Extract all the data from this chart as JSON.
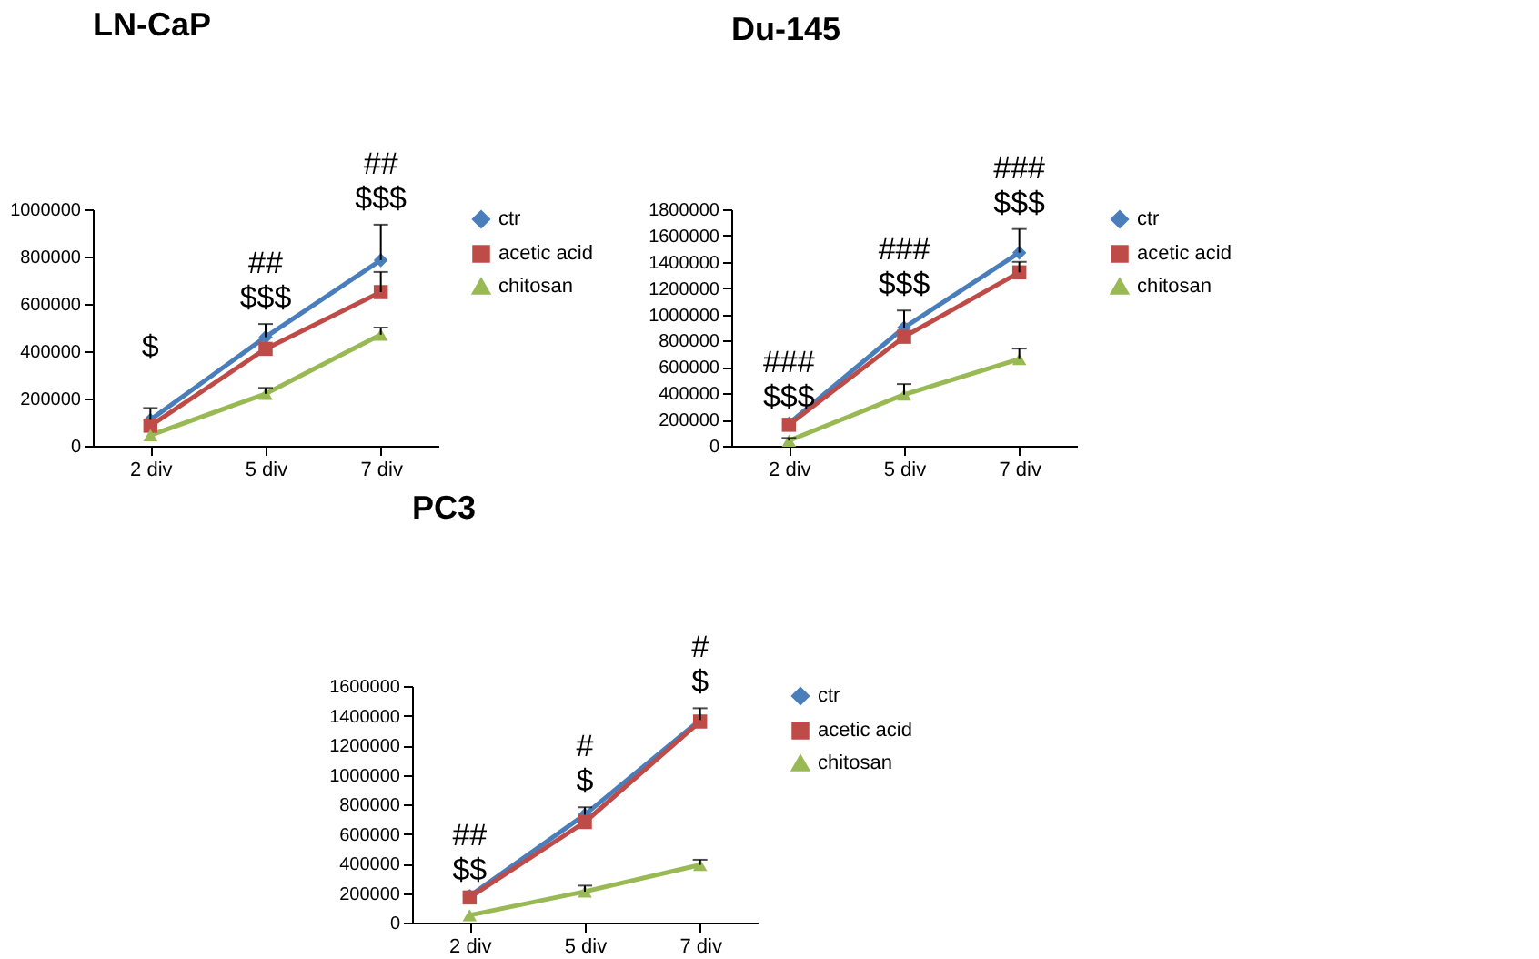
{
  "chart_data": [
    {
      "type": "line",
      "title": "LN-CaP",
      "categories": [
        "2 div",
        "5 div",
        "7 div"
      ],
      "ylim": [
        0,
        1000000
      ],
      "yticks": [
        0,
        200000,
        400000,
        600000,
        800000,
        1000000
      ],
      "grid": false,
      "legend": "right",
      "series": [
        {
          "name": "ctr",
          "color": "#4a7ebb",
          "marker": "diamond",
          "values": [
            110000,
            460000,
            785000
          ],
          "errors": [
            [
              110000,
              160000
            ],
            [
              460000,
              515000
            ],
            [
              785000,
              935000
            ]
          ]
        },
        {
          "name": "acetic acid",
          "color": "#be4b48",
          "marker": "square",
          "values": [
            85000,
            410000,
            650000
          ],
          "errors": [
            null,
            null,
            [
              650000,
              735000
            ]
          ]
        },
        {
          "name": "chitosan",
          "color": "#98b954",
          "marker": "triangle",
          "values": [
            45000,
            220000,
            470000
          ],
          "errors": [
            null,
            [
              220000,
              245000
            ],
            [
              470000,
              500000
            ]
          ]
        }
      ],
      "annotations": [
        "$",
        "##\n$$$",
        "##\n$$$"
      ]
    },
    {
      "type": "line",
      "title": "Du-145",
      "categories": [
        "2 div",
        "5 div",
        "7 div"
      ],
      "ylim": [
        0,
        1800000
      ],
      "yticks": [
        0,
        200000,
        400000,
        600000,
        800000,
        1000000,
        1200000,
        1400000,
        1600000,
        1800000
      ],
      "grid": false,
      "legend": "right",
      "series": [
        {
          "name": "ctr",
          "color": "#4a7ebb",
          "marker": "diamond",
          "values": [
            170000,
            900000,
            1470000
          ],
          "errors": [
            null,
            [
              900000,
              1030000
            ],
            [
              1470000,
              1650000
            ]
          ]
        },
        {
          "name": "acetic acid",
          "color": "#be4b48",
          "marker": "square",
          "values": [
            160000,
            830000,
            1320000
          ],
          "errors": [
            null,
            null,
            [
              1320000,
              1400000
            ]
          ]
        },
        {
          "name": "chitosan",
          "color": "#98b954",
          "marker": "triangle",
          "values": [
            40000,
            390000,
            660000
          ],
          "errors": [
            [
              40000,
              60000
            ],
            [
              390000,
              470000
            ],
            [
              660000,
              740000
            ]
          ]
        }
      ],
      "annotations": [
        "###\n$$$",
        "###\n$$$",
        "###\n$$$"
      ]
    },
    {
      "type": "line",
      "title": "PC3",
      "categories": [
        "2 div",
        "5 div",
        "7 div"
      ],
      "ylim": [
        0,
        1600000
      ],
      "yticks": [
        0,
        200000,
        400000,
        600000,
        800000,
        1000000,
        1200000,
        1400000,
        1600000
      ],
      "grid": false,
      "legend": "right",
      "series": [
        {
          "name": "ctr",
          "color": "#4a7ebb",
          "marker": "diamond",
          "values": [
            180000,
            730000,
            1370000
          ],
          "errors": [
            null,
            [
              730000,
              780000
            ],
            [
              1370000,
              1450000
            ]
          ]
        },
        {
          "name": "acetic acid",
          "color": "#be4b48",
          "marker": "square",
          "values": [
            170000,
            680000,
            1360000
          ],
          "errors": [
            null,
            null,
            null
          ]
        },
        {
          "name": "chitosan",
          "color": "#98b954",
          "marker": "triangle",
          "values": [
            50000,
            210000,
            390000
          ],
          "errors": [
            null,
            [
              210000,
              250000
            ],
            [
              390000,
              425000
            ]
          ]
        }
      ],
      "annotations": [
        "##\n$$",
        "#\n$",
        "#\n$"
      ]
    }
  ]
}
